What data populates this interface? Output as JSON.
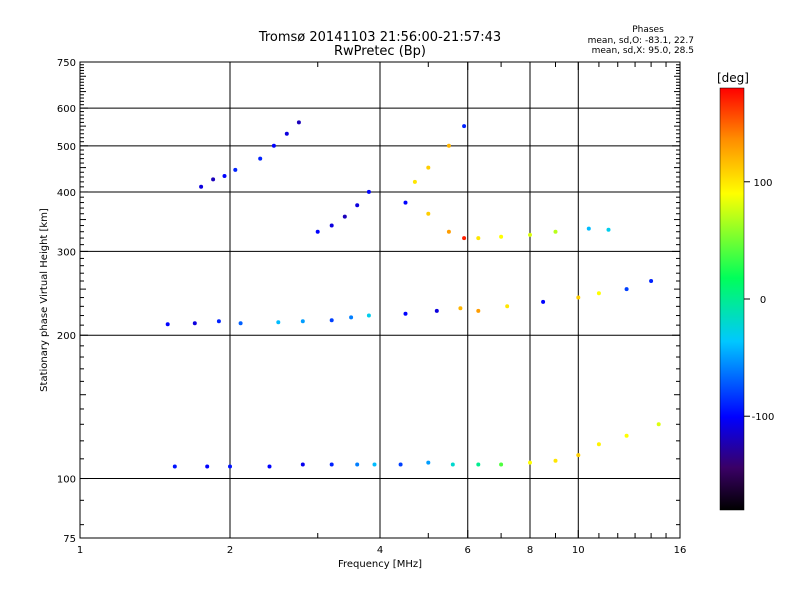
{
  "chart_data": {
    "type": "scatter",
    "title": "Tromsø 20141103 21:56:00-21:57:43",
    "subtitle": "RwPretec (Bp)",
    "xlabel": "Frequency [MHz]",
    "ylabel": "Stationary phase Virtual Height [km]",
    "x_scale": "log",
    "y_scale": "log",
    "xlim": [
      1,
      16
    ],
    "ylim": [
      75,
      750
    ],
    "x_ticks": [
      1,
      2,
      4,
      6,
      8,
      10,
      16
    ],
    "y_ticks": [
      75,
      100,
      200,
      300,
      400,
      500,
      600,
      750
    ],
    "grid": true,
    "phases_box": {
      "title": "Phases",
      "line1": "mean, sd,O: -83.1, 22.7",
      "line2": "mean, sd,X:  95.0, 28.5"
    },
    "colorbar": {
      "label": "[deg]",
      "range": [
        -180,
        180
      ],
      "ticks": [
        100,
        0,
        -100
      ],
      "colormap": [
        "#000000",
        "#3a0066",
        "#0000ff",
        "#00c8ff",
        "#00ff5a",
        "#ffff00",
        "#ff8c00",
        "#ff0000"
      ]
    },
    "series": [
      {
        "x": [
          1.55,
          1.8,
          2.0,
          2.4,
          2.8,
          3.2,
          3.6,
          3.9,
          4.4,
          5.0,
          5.6,
          6.3,
          7.0,
          8.0,
          9.0,
          10.0,
          11.0,
          12.5,
          14.5
        ],
        "y": [
          106,
          106,
          106,
          106,
          107,
          107,
          107,
          107,
          107,
          108,
          107,
          107,
          107,
          108,
          109,
          112,
          118,
          123,
          130
        ],
        "phase": [
          -95,
          -100,
          -95,
          -100,
          -105,
          -90,
          -60,
          -40,
          -80,
          -50,
          -20,
          0,
          40,
          90,
          100,
          110,
          95,
          90,
          80
        ]
      },
      {
        "x": [
          1.5,
          1.7,
          1.9,
          2.1,
          2.5,
          2.8,
          3.2,
          3.5,
          3.8,
          4.5,
          5.2,
          5.8
        ],
        "y": [
          211,
          212,
          214,
          212,
          213,
          214,
          215,
          218,
          220,
          222,
          225,
          228
        ],
        "phase": [
          -100,
          -110,
          -90,
          -70,
          -40,
          -50,
          -80,
          -60,
          -30,
          -100,
          -110,
          120
        ]
      },
      {
        "x": [
          1.75,
          1.85,
          1.95,
          2.05
        ],
        "y": [
          410,
          425,
          432,
          445
        ],
        "phase": [
          -110,
          -120,
          -100,
          -90
        ]
      },
      {
        "x": [
          2.3,
          2.45,
          2.6,
          2.75
        ],
        "y": [
          470,
          500,
          530,
          560
        ],
        "phase": [
          -90,
          -100,
          -110,
          -120
        ]
      },
      {
        "x": [
          3.0,
          3.2,
          3.4,
          3.6,
          3.8
        ],
        "y": [
          330,
          340,
          355,
          375,
          400
        ],
        "phase": [
          -100,
          -110,
          -120,
          -110,
          -100
        ]
      },
      {
        "x": [
          4.5,
          4.7,
          5.0,
          5.5,
          5.9
        ],
        "y": [
          380,
          420,
          450,
          500,
          550
        ],
        "phase": [
          -100,
          100,
          110,
          120,
          -90
        ]
      },
      {
        "x": [
          5.0,
          5.5,
          5.9
        ],
        "y": [
          360,
          330,
          320
        ],
        "phase": [
          110,
          130,
          170
        ]
      },
      {
        "x": [
          6.3,
          7.0,
          8.0,
          9.0,
          10.5,
          11.5
        ],
        "y": [
          320,
          322,
          325,
          330,
          335,
          333
        ],
        "phase": [
          100,
          90,
          80,
          70,
          -40,
          -30
        ]
      },
      {
        "x": [
          6.3,
          7.2,
          8.5,
          10.0,
          11.0,
          12.5,
          14.0
        ],
        "y": [
          225,
          230,
          235,
          240,
          245,
          250,
          260
        ],
        "phase": [
          130,
          100,
          -100,
          110,
          90,
          -80,
          -90
        ]
      }
    ]
  }
}
